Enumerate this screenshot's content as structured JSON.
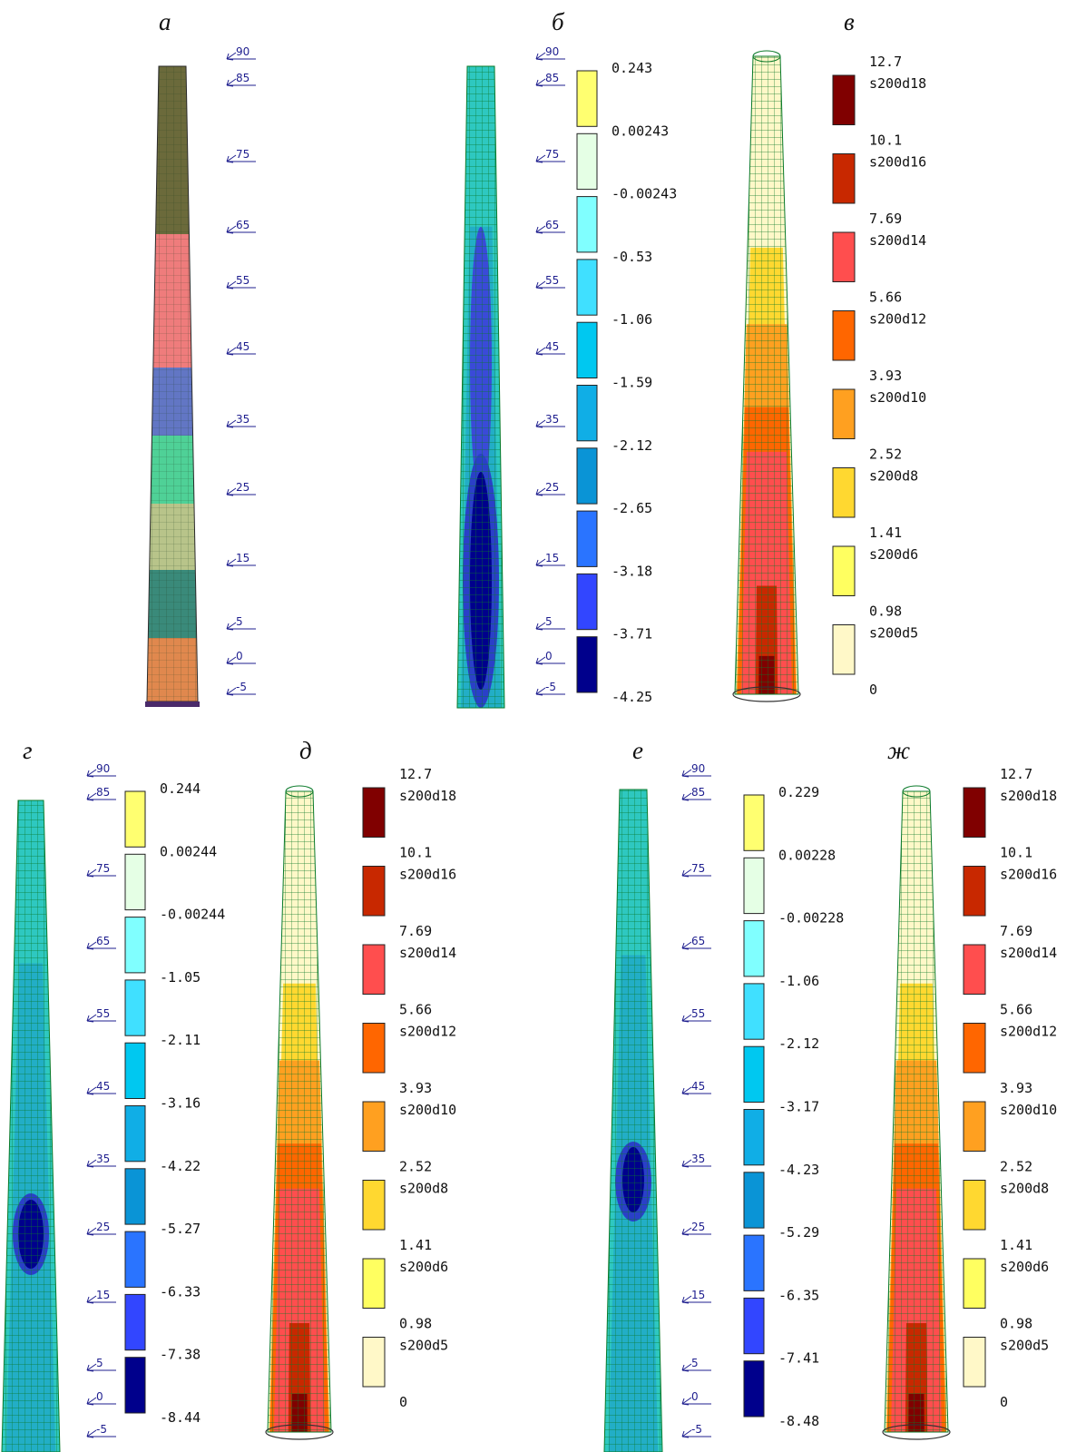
{
  "panels": [
    {
      "id": "a",
      "label": "а"
    },
    {
      "id": "b",
      "label": "б"
    },
    {
      "id": "v",
      "label": "в"
    },
    {
      "id": "g",
      "label": "г"
    },
    {
      "id": "d",
      "label": "д"
    },
    {
      "id": "e",
      "label": "е"
    },
    {
      "id": "zh",
      "label": "ж"
    }
  ],
  "level_marks": {
    "upper": [
      "90",
      "85",
      "75",
      "65",
      "55",
      "45",
      "35",
      "25",
      "15",
      "5",
      "0",
      "-5"
    ],
    "lower": [
      "90",
      "85",
      "75",
      "65",
      "55",
      "45",
      "35",
      "25",
      "15",
      "5",
      "0",
      "-5"
    ]
  },
  "zone_colors": [
    "#6b6a3b",
    "#ef7c7c",
    "#6276c4",
    "#4fd197",
    "#b8c48a",
    "#3a8a7a",
    "#e0884e"
  ],
  "stress_legend_b": {
    "labels": [
      "0.243",
      "0.00243",
      "-0.00243",
      "-0.53",
      "-1.06",
      "-1.59",
      "-2.12",
      "-2.65",
      "-3.18",
      "-3.71",
      "-4.25"
    ],
    "colors": [
      "#ffff70",
      "#e5ffe5",
      "#80ffff",
      "#40e0ff",
      "#00c8f0",
      "#10aee6",
      "#0a94d6",
      "#2a74ff",
      "#3246ff",
      "#00008c"
    ]
  },
  "stress_legend_g": {
    "labels": [
      "0.244",
      "0.00244",
      "-0.00244",
      "-1.05",
      "-2.11",
      "-3.16",
      "-4.22",
      "-5.27",
      "-6.33",
      "-7.38",
      "-8.44"
    ],
    "colors": [
      "#ffff70",
      "#e5ffe5",
      "#80ffff",
      "#40e0ff",
      "#00c8f0",
      "#10aee6",
      "#0a94d6",
      "#2a74ff",
      "#3246ff",
      "#00008c"
    ]
  },
  "stress_legend_e": {
    "labels": [
      "0.229",
      "0.00228",
      "-0.00228",
      "-1.06",
      "-2.12",
      "-3.17",
      "-4.23",
      "-5.29",
      "-6.35",
      "-7.41",
      "-8.48"
    ],
    "colors": [
      "#ffff70",
      "#e5ffe5",
      "#80ffff",
      "#40e0ff",
      "#00c8f0",
      "#10aee6",
      "#0a94d6",
      "#2a74ff",
      "#3246ff",
      "#00008c"
    ]
  },
  "reinforcement_legend": {
    "values": [
      "12.7",
      "10.1",
      "7.69",
      "5.66",
      "3.93",
      "2.52",
      "1.41",
      "0.98",
      "0"
    ],
    "names": [
      "s200d18",
      "s200d16",
      "s200d14",
      "s200d12",
      "s200d10",
      "s200d8",
      "s200d6",
      "s200d5"
    ],
    "colors": [
      "#800000",
      "#c82800",
      "#ff4e4e",
      "#ff6600",
      "#ffa020",
      "#ffd830",
      "#ffff60",
      "#fff8c8"
    ]
  },
  "colors": {
    "mesh": "#0a7a2a",
    "level_mark": "#1f1f8f",
    "base": "#4a2a6a"
  }
}
